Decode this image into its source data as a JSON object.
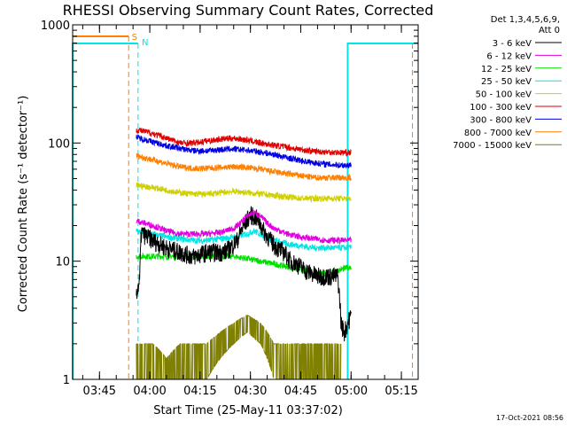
{
  "chart_data": {
    "type": "line",
    "title": "RHESSI Observing Summary Count Rates, Corrected",
    "xlabel": "Start Time (25-May-11 03:37:02)",
    "ylabel": "Corrected Count Rate (s⁻¹ detector⁻¹)",
    "yscale": "log",
    "ylim": [
      1,
      1000
    ],
    "xlim_minutes": [
      0,
      103
    ],
    "x_ticks": [
      {
        "label": "03:45",
        "t": 8
      },
      {
        "label": "04:00",
        "t": 23
      },
      {
        "label": "04:15",
        "t": 38
      },
      {
        "label": "04:30",
        "t": 53
      },
      {
        "label": "04:45",
        "t": 68
      },
      {
        "label": "05:00",
        "t": 83
      },
      {
        "label": "05:15",
        "t": 98
      }
    ],
    "y_ticks": [
      {
        "label": "1",
        "v": 1
      },
      {
        "label": "10",
        "v": 10
      },
      {
        "label": "100",
        "v": 100
      },
      {
        "label": "1000",
        "v": 1000
      }
    ],
    "legend_header": [
      "Det 1,3,4,5,6,9,",
      "Att 0"
    ],
    "legend_position": "right",
    "series": [
      {
        "name": "3 - 6 keV",
        "color": "#000000",
        "t": [
          19,
          19.5,
          20,
          20.5,
          21,
          24,
          28,
          32,
          36,
          40,
          43,
          45,
          47,
          49,
          51,
          53,
          55,
          57,
          59,
          61,
          63,
          65,
          67,
          69,
          71,
          73,
          75,
          77,
          79,
          80,
          81,
          82,
          83
        ],
        "v": [
          5.5,
          6,
          7,
          18,
          17,
          15,
          13,
          12,
          11,
          12,
          12,
          12,
          13,
          15,
          20,
          25,
          23,
          18,
          15,
          13,
          12,
          10,
          9.5,
          8.5,
          8,
          7.5,
          7.5,
          7.5,
          7.5,
          3,
          2.5,
          3,
          3.5
        ]
      },
      {
        "name": "6 - 12 keV",
        "color": "#e000e0",
        "t": [
          19,
          24,
          28,
          32,
          36,
          40,
          44,
          48,
          50,
          52,
          54,
          56,
          58,
          60,
          62,
          64,
          66,
          68,
          72,
          76,
          80,
          83
        ],
        "v": [
          22,
          20,
          18,
          17,
          17,
          17,
          17.5,
          19,
          21,
          24,
          26,
          24,
          21,
          19,
          18,
          17,
          16.5,
          16,
          15.5,
          15,
          15,
          15
        ]
      },
      {
        "name": "12 - 25 keV",
        "color": "#00e000",
        "t": [
          19,
          24,
          28,
          32,
          36,
          40,
          44,
          48,
          52,
          56,
          60,
          64,
          68,
          72,
          76,
          80,
          83
        ],
        "v": [
          11,
          11,
          11,
          11,
          11,
          11,
          11,
          11,
          10.5,
          10,
          9.5,
          9,
          8.5,
          8,
          8,
          8.5,
          9
        ]
      },
      {
        "name": "25 - 50 keV",
        "color": "#00e5e5",
        "t": [
          19,
          24,
          28,
          32,
          36,
          40,
          44,
          48,
          52,
          54,
          56,
          58,
          60,
          64,
          68,
          72,
          76,
          80,
          83
        ],
        "v": [
          18,
          17,
          16,
          15.5,
          15,
          15,
          15.5,
          16,
          17,
          18,
          17,
          16,
          15,
          14,
          13.5,
          13,
          13,
          13,
          13
        ]
      },
      {
        "name": "50 - 100 keV",
        "color": "#d0d000",
        "t": [
          19,
          24,
          28,
          32,
          36,
          40,
          44,
          48,
          52,
          56,
          60,
          64,
          68,
          72,
          76,
          80,
          83
        ],
        "v": [
          44,
          42,
          40,
          38,
          37,
          37,
          38,
          39,
          38,
          37,
          36,
          35,
          34,
          34,
          34,
          34,
          34
        ]
      },
      {
        "name": "100 - 300 keV",
        "color": "#e00000",
        "t": [
          19,
          24,
          28,
          32,
          36,
          40,
          44,
          48,
          52,
          56,
          60,
          64,
          68,
          72,
          76,
          80,
          83
        ],
        "v": [
          130,
          120,
          110,
          100,
          100,
          104,
          108,
          110,
          106,
          100,
          96,
          92,
          88,
          85,
          84,
          83,
          83
        ]
      },
      {
        "name": "300 - 800 keV",
        "color": "#0000e0",
        "t": [
          19,
          24,
          28,
          32,
          36,
          40,
          44,
          48,
          52,
          56,
          60,
          64,
          68,
          72,
          76,
          80,
          83
        ],
        "v": [
          112,
          102,
          95,
          90,
          86,
          86,
          88,
          89,
          87,
          84,
          80,
          75,
          71,
          68,
          66,
          65,
          65
        ]
      },
      {
        "name": "800 - 7000 keV",
        "color": "#ff7f00",
        "t": [
          19,
          24,
          28,
          32,
          36,
          40,
          44,
          48,
          52,
          56,
          60,
          64,
          68,
          72,
          76,
          80,
          83
        ],
        "v": [
          78,
          72,
          67,
          63,
          61,
          61,
          62,
          63,
          62,
          60,
          57,
          55,
          53,
          51,
          51,
          51,
          51
        ]
      },
      {
        "name": "7000 - 15000 keV",
        "color": "#808000",
        "t": [
          19,
          24,
          28,
          32,
          36,
          40,
          44,
          48,
          52,
          56,
          60,
          64,
          68,
          72,
          76,
          80
        ],
        "v": [
          2,
          2,
          1.5,
          2,
          2,
          2,
          2.5,
          3,
          3.5,
          3,
          2,
          2,
          2,
          2,
          2,
          2
        ]
      }
    ],
    "flags": [
      {
        "label": "S",
        "color": "#ff7f00"
      },
      {
        "label": "N",
        "color": "#00e5e5"
      }
    ],
    "footer_date": "17-Oct-2021 08:56"
  }
}
